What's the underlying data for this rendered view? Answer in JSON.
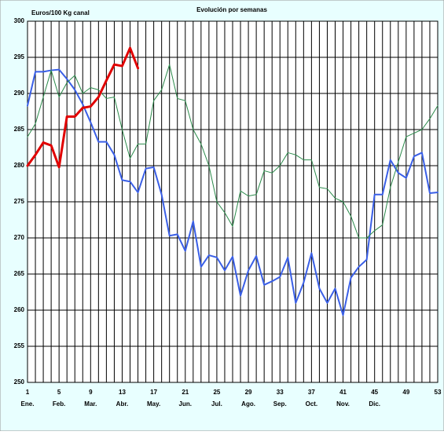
{
  "chart_data": {
    "type": "line",
    "title": "Evolución por semanas",
    "y_label": "Euros/100 Kg canal",
    "x": [
      1,
      2,
      3,
      4,
      5,
      6,
      7,
      8,
      9,
      10,
      11,
      12,
      13,
      14,
      15,
      16,
      17,
      18,
      19,
      20,
      21,
      22,
      23,
      24,
      25,
      26,
      27,
      28,
      29,
      30,
      31,
      32,
      33,
      34,
      35,
      36,
      37,
      38,
      39,
      40,
      41,
      42,
      43,
      44,
      45,
      46,
      47,
      48,
      49,
      50,
      51,
      52,
      53
    ],
    "xlim": [
      1,
      53
    ],
    "xticks": [
      1,
      5,
      9,
      13,
      17,
      21,
      25,
      29,
      33,
      37,
      41,
      45,
      49,
      53
    ],
    "month_labels": [
      "Ene.",
      "Feb.",
      "Mar.",
      "Abr.",
      "May.",
      "Jun.",
      "Jul.",
      "Ago.",
      "Sep.",
      "Oct.",
      "Nov.",
      "Dic."
    ],
    "ylim": [
      250,
      300
    ],
    "yticks": [
      250,
      255,
      260,
      265,
      270,
      275,
      280,
      285,
      290,
      295,
      300
    ],
    "grid": true,
    "series": [
      {
        "color": "#3a5fe6",
        "width": 2,
        "values": [
          288.3,
          293,
          293,
          293.2,
          293.3,
          292,
          290.5,
          288.5,
          286,
          283.3,
          283.3,
          281.5,
          278,
          277.8,
          276.3,
          279.6,
          279.8,
          276,
          270.3,
          270.5,
          268.2,
          272.3,
          266,
          267.6,
          267.3,
          265.5,
          267.4,
          262,
          265.5,
          267.5,
          263.5,
          264,
          264.6,
          267.3,
          261,
          263.8,
          267.9,
          263,
          261,
          263,
          259.3,
          264.5,
          266,
          267,
          276,
          276,
          280.8,
          279,
          278.3,
          281.3,
          281.8,
          276.2,
          276.3
        ]
      },
      {
        "color": "#2a8a4a",
        "width": 1,
        "values": [
          284,
          285.8,
          289.5,
          293.2,
          289.5,
          291.5,
          292.5,
          290,
          290.8,
          290.5,
          289.3,
          289.5,
          285,
          281,
          283,
          283,
          289,
          290.5,
          294,
          289.3,
          289,
          285,
          283,
          280,
          275,
          273.5,
          271.6,
          276.5,
          275.8,
          276,
          279.3,
          279,
          280,
          281.8,
          281.5,
          280.8,
          280.8,
          277,
          276.8,
          275.5,
          275,
          273,
          270,
          270,
          271,
          271.8,
          277,
          280.5,
          284,
          284.5,
          285,
          286.5,
          288.3
        ]
      },
      {
        "color": "#e00000",
        "width": 3,
        "values": [
          280,
          281.5,
          283.2,
          282.8,
          279.8,
          286.8,
          286.8,
          288,
          288.2,
          289.5,
          291.8,
          294,
          293.8,
          296.3,
          293.5,
          null,
          null,
          null,
          null,
          null,
          null,
          null,
          null,
          null,
          null,
          null,
          null,
          null,
          null,
          null,
          null,
          null,
          null,
          null,
          null,
          null,
          null,
          null,
          null,
          null,
          null,
          null,
          null,
          null,
          null,
          null,
          null,
          null,
          null,
          null,
          null,
          null,
          null
        ]
      }
    ]
  }
}
